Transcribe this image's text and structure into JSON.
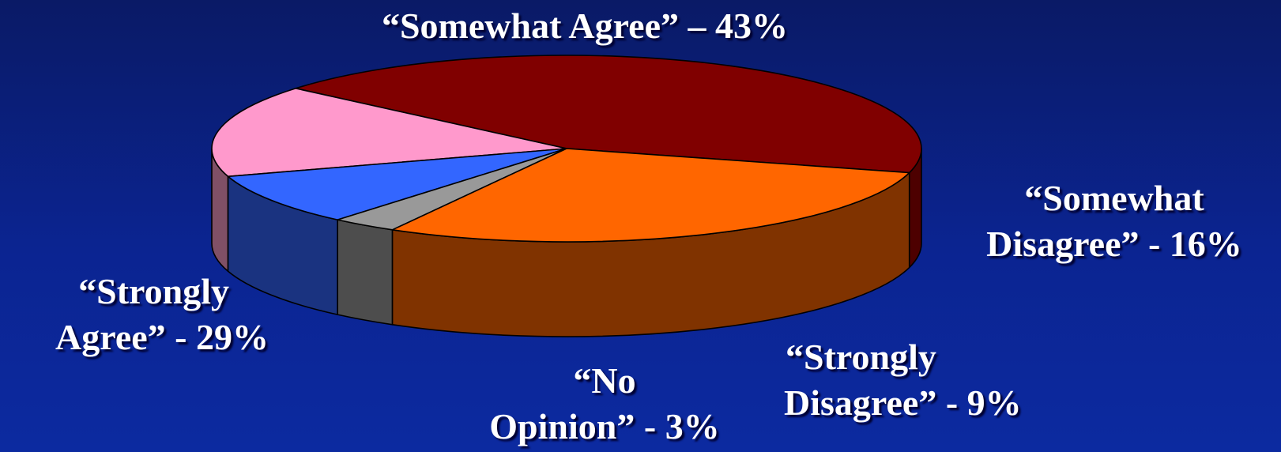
{
  "chart_data": {
    "type": "pie",
    "style": "3d",
    "slices": [
      {
        "key": "somewhat_agree",
        "label_lines": [
          "“Somewhat Agree” – 43%"
        ],
        "value": 43,
        "top_color": "#800000",
        "side_color": "#4d0000"
      },
      {
        "key": "somewhat_disagree",
        "label_lines": [
          "“Somewhat",
          "Disagree” - 16%"
        ],
        "value": 16,
        "top_color": "#ff99cc",
        "side_color": "#805066"
      },
      {
        "key": "strongly_disagree",
        "label_lines": [
          "“Strongly",
          "Disagree” - 9%"
        ],
        "value": 9,
        "top_color": "#3366ff",
        "side_color": "#1a3380"
      },
      {
        "key": "no_opinion",
        "label_lines": [
          "“No",
          "Opinion” - 3%"
        ],
        "value": 3,
        "top_color": "#999999",
        "side_color": "#4d4d4d"
      },
      {
        "key": "strongly_agree",
        "label_lines": [
          "“Strongly",
          "Agree” - 29%"
        ],
        "value": 29,
        "top_color": "#ff6600",
        "side_color": "#803300"
      }
    ],
    "legend": "none"
  },
  "labels": {
    "somewhat_agree": {
      "line1": "“Somewhat Agree” – 43%"
    },
    "somewhat_disagree": {
      "line1": "“Somewhat",
      "line2": "Disagree” - 16%"
    },
    "strongly_disagree": {
      "line1": "“Strongly",
      "line2": "Disagree” - 9%"
    },
    "no_opinion": {
      "line1": "“No",
      "line2": "Opinion” - 3%"
    },
    "strongly_agree": {
      "line1": "“Strongly",
      "line2": "Agree” - 29%"
    }
  }
}
